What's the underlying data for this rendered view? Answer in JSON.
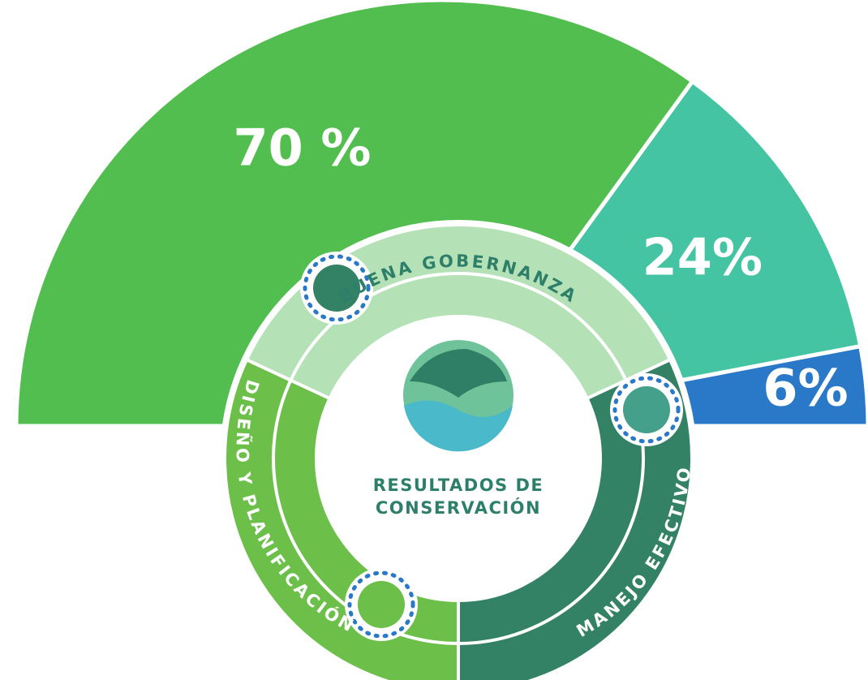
{
  "chart_data": {
    "type": "semi-pie",
    "values": [
      70,
      24,
      6
    ],
    "value_labels": [
      "70 %",
      "24%",
      "6%"
    ],
    "colors": [
      "#52be4f",
      "#44c4a2",
      "#2a78c8"
    ]
  },
  "diagram": {
    "center_label": [
      "RESULTADOS DE",
      "CONSERVACIÓN"
    ],
    "segments": [
      {
        "label": "BUENA GOBERNANZA",
        "color": "#b4e1b6"
      },
      {
        "label": "DISEÑO Y PLANIFICACIÓN",
        "color": "#6cc04a"
      },
      {
        "label": "MANEJO EFECTIVO",
        "color": "#338266"
      }
    ]
  }
}
